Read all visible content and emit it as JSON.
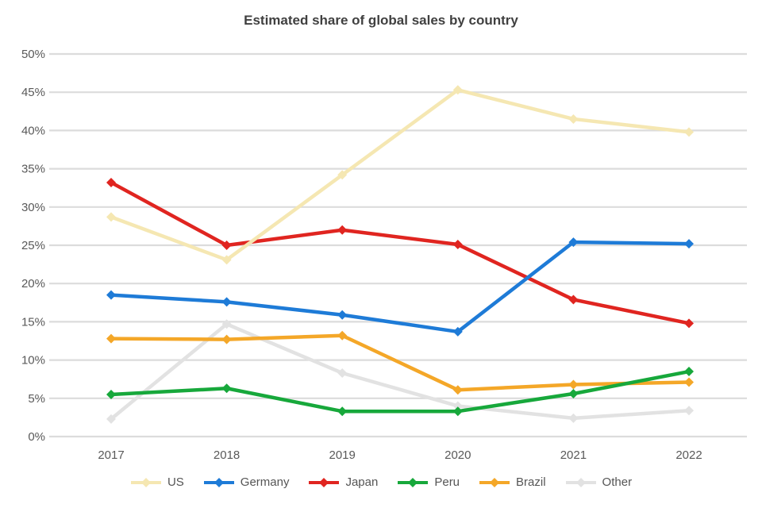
{
  "title": "Estimated share of global sales by country",
  "colors": {
    "background": "#FFFFFF",
    "grid": "#DCDCDC",
    "tick_text": "#595959",
    "title_text": "#404040"
  },
  "chart_data": {
    "type": "line",
    "title": "Estimated share of global sales by country",
    "categories": [
      "2017",
      "2018",
      "2019",
      "2020",
      "2021",
      "2022"
    ],
    "series": [
      {
        "name": "US",
        "color": "#F5E7B2",
        "values": [
          28.7,
          23.1,
          34.2,
          45.3,
          41.5,
          39.8
        ]
      },
      {
        "name": "Germany",
        "color": "#1E7BD7",
        "values": [
          18.5,
          17.6,
          15.9,
          13.7,
          25.4,
          25.2
        ]
      },
      {
        "name": "Japan",
        "color": "#E02520",
        "values": [
          33.2,
          25.0,
          27.0,
          25.1,
          17.9,
          14.8
        ]
      },
      {
        "name": "Peru",
        "color": "#17A83B",
        "values": [
          5.5,
          6.3,
          3.3,
          3.3,
          5.6,
          8.5
        ]
      },
      {
        "name": "Brazil",
        "color": "#F4A728",
        "values": [
          12.8,
          12.7,
          13.2,
          6.1,
          6.8,
          7.1
        ]
      },
      {
        "name": "Other",
        "color": "#E2E2E2",
        "values": [
          2.3,
          14.7,
          8.3,
          4.0,
          2.4,
          3.4
        ]
      }
    ],
    "xlabel": "",
    "ylabel": "",
    "ylim": [
      0,
      50
    ],
    "ytick_step": 5,
    "ytick_labels": [
      "0%",
      "5%",
      "10%",
      "15%",
      "20%",
      "25%",
      "30%",
      "35%",
      "40%",
      "45%",
      "50%"
    ],
    "grid": "horizontal",
    "legend_position": "bottom",
    "marker": "diamond"
  }
}
